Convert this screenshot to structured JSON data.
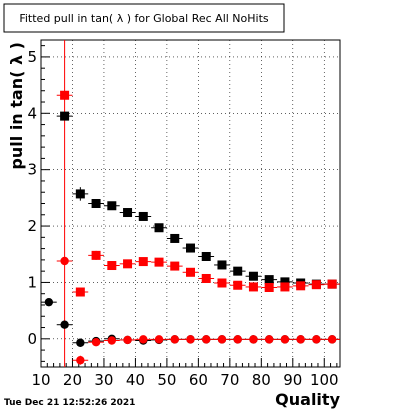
{
  "title": "Fitted pull in tan( λ ) for Global Rec All NoHits",
  "timestamp": "Tue Dec 21 12:52:26 2021",
  "colors": {
    "black_series": "#000000",
    "red_series": "#ff0000",
    "frame": "#000000",
    "grid": "#000000"
  },
  "chart_data": {
    "type": "scatter",
    "title": "Fitted pull in tan( λ ) for Global Rec All NoHits",
    "xlabel": "Quality",
    "ylabel": "pull in tan( λ )",
    "xlim": [
      10,
      105
    ],
    "ylim": [
      -0.5,
      5.3
    ],
    "xticks": [
      10,
      20,
      30,
      40,
      50,
      60,
      70,
      80,
      90,
      100
    ],
    "yticks": [
      0,
      1,
      2,
      3,
      4,
      5
    ],
    "grid": true,
    "vline_x": 17.5,
    "x_half_width": 2.5,
    "series": [
      {
        "marker": "circle",
        "color": "black",
        "points": [
          {
            "x": 12.5,
            "y": 0.65,
            "err": 0.05
          },
          {
            "x": 17.5,
            "y": 0.25,
            "err": 0.04
          },
          {
            "x": 22.5,
            "y": -0.07,
            "err": 0.07
          },
          {
            "x": 27.5,
            "y": -0.04,
            "err": 0.03
          },
          {
            "x": 32.5,
            "y": 0.0,
            "err": 0.02
          },
          {
            "x": 37.5,
            "y": -0.02,
            "err": 0.02
          },
          {
            "x": 42.5,
            "y": -0.03,
            "err": 0.02
          },
          {
            "x": 47.5,
            "y": -0.02,
            "err": 0.02
          },
          {
            "x": 52.5,
            "y": -0.01,
            "err": 0.02
          },
          {
            "x": 57.5,
            "y": -0.01,
            "err": 0.02
          },
          {
            "x": 62.5,
            "y": -0.01,
            "err": 0.02
          },
          {
            "x": 67.5,
            "y": -0.01,
            "err": 0.02
          },
          {
            "x": 72.5,
            "y": -0.01,
            "err": 0.02
          },
          {
            "x": 77.5,
            "y": -0.01,
            "err": 0.02
          },
          {
            "x": 82.5,
            "y": -0.01,
            "err": 0.02
          },
          {
            "x": 87.5,
            "y": -0.01,
            "err": 0.02
          },
          {
            "x": 92.5,
            "y": -0.01,
            "err": 0.02
          },
          {
            "x": 97.5,
            "y": -0.01,
            "err": 0.02
          },
          {
            "x": 102.5,
            "y": -0.01,
            "err": 0.02
          }
        ]
      },
      {
        "marker": "circle",
        "color": "red",
        "points": [
          {
            "x": 17.5,
            "y": 1.38,
            "err": 0.05
          },
          {
            "x": 22.5,
            "y": -0.38,
            "err": 0.08
          },
          {
            "x": 27.5,
            "y": -0.06,
            "err": 0.04
          },
          {
            "x": 32.5,
            "y": -0.03,
            "err": 0.02
          },
          {
            "x": 37.5,
            "y": -0.02,
            "err": 0.02
          },
          {
            "x": 42.5,
            "y": -0.01,
            "err": 0.02
          },
          {
            "x": 47.5,
            "y": -0.01,
            "err": 0.02
          },
          {
            "x": 52.5,
            "y": -0.01,
            "err": 0.02
          },
          {
            "x": 57.5,
            "y": -0.01,
            "err": 0.02
          },
          {
            "x": 62.5,
            "y": -0.01,
            "err": 0.02
          },
          {
            "x": 67.5,
            "y": -0.01,
            "err": 0.02
          },
          {
            "x": 72.5,
            "y": -0.01,
            "err": 0.02
          },
          {
            "x": 77.5,
            "y": -0.01,
            "err": 0.02
          },
          {
            "x": 82.5,
            "y": -0.01,
            "err": 0.02
          },
          {
            "x": 87.5,
            "y": -0.01,
            "err": 0.02
          },
          {
            "x": 92.5,
            "y": -0.01,
            "err": 0.02
          },
          {
            "x": 97.5,
            "y": -0.01,
            "err": 0.02
          },
          {
            "x": 102.5,
            "y": -0.01,
            "err": 0.02
          }
        ]
      },
      {
        "marker": "square",
        "color": "black",
        "points": [
          {
            "x": 17.5,
            "y": 3.95,
            "err": 0.06
          },
          {
            "x": 22.5,
            "y": 2.57,
            "err": 0.12
          },
          {
            "x": 27.5,
            "y": 2.4,
            "err": 0.06
          },
          {
            "x": 32.5,
            "y": 2.36,
            "err": 0.05
          },
          {
            "x": 37.5,
            "y": 2.24,
            "err": 0.04
          },
          {
            "x": 42.5,
            "y": 2.17,
            "err": 0.04
          },
          {
            "x": 47.5,
            "y": 1.97,
            "err": 0.03
          },
          {
            "x": 52.5,
            "y": 1.78,
            "err": 0.03
          },
          {
            "x": 57.5,
            "y": 1.61,
            "err": 0.03
          },
          {
            "x": 62.5,
            "y": 1.46,
            "err": 0.03
          },
          {
            "x": 67.5,
            "y": 1.31,
            "err": 0.03
          },
          {
            "x": 72.5,
            "y": 1.2,
            "err": 0.02
          },
          {
            "x": 77.5,
            "y": 1.11,
            "err": 0.02
          },
          {
            "x": 82.5,
            "y": 1.05,
            "err": 0.02
          },
          {
            "x": 87.5,
            "y": 1.01,
            "err": 0.02
          },
          {
            "x": 92.5,
            "y": 0.99,
            "err": 0.02
          },
          {
            "x": 97.5,
            "y": 0.97,
            "err": 0.02
          },
          {
            "x": 102.5,
            "y": 0.97,
            "err": 0.02
          }
        ]
      },
      {
        "marker": "square",
        "color": "red",
        "points": [
          {
            "x": 17.5,
            "y": 4.32,
            "err": 0.05
          },
          {
            "x": 22.5,
            "y": 0.83,
            "err": 0.06
          },
          {
            "x": 27.5,
            "y": 1.48,
            "err": 0.08
          },
          {
            "x": 32.5,
            "y": 1.3,
            "err": 0.05
          },
          {
            "x": 37.5,
            "y": 1.33,
            "err": 0.04
          },
          {
            "x": 42.5,
            "y": 1.37,
            "err": 0.04
          },
          {
            "x": 47.5,
            "y": 1.36,
            "err": 0.03
          },
          {
            "x": 52.5,
            "y": 1.29,
            "err": 0.03
          },
          {
            "x": 57.5,
            "y": 1.18,
            "err": 0.03
          },
          {
            "x": 62.5,
            "y": 1.07,
            "err": 0.03
          },
          {
            "x": 67.5,
            "y": 0.99,
            "err": 0.02
          },
          {
            "x": 72.5,
            "y": 0.95,
            "err": 0.02
          },
          {
            "x": 77.5,
            "y": 0.92,
            "err": 0.02
          },
          {
            "x": 82.5,
            "y": 0.91,
            "err": 0.02
          },
          {
            "x": 87.5,
            "y": 0.92,
            "err": 0.02
          },
          {
            "x": 92.5,
            "y": 0.94,
            "err": 0.02
          },
          {
            "x": 97.5,
            "y": 0.96,
            "err": 0.02
          },
          {
            "x": 102.5,
            "y": 0.97,
            "err": 0.02
          }
        ]
      }
    ]
  }
}
